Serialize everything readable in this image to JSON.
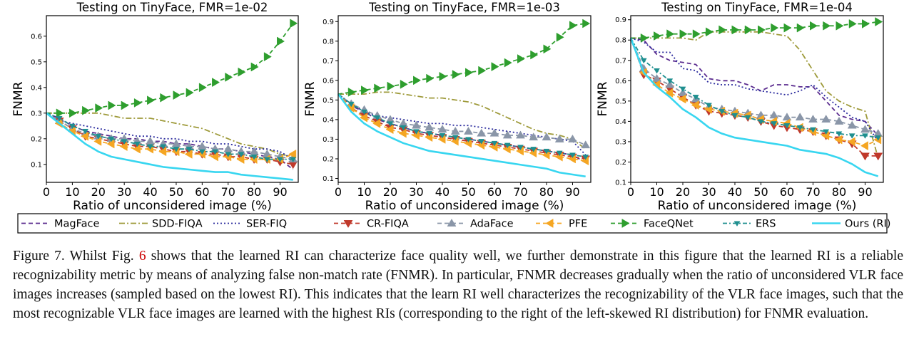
{
  "x_ticks": [
    "0",
    "10",
    "20",
    "30",
    "40",
    "50",
    "60",
    "70",
    "80",
    "90"
  ],
  "legend": [
    {
      "name": "MagFace",
      "color": "#5b2c8f",
      "dash": "6,4",
      "marker": "none"
    },
    {
      "name": "SDD-FIQA",
      "color": "#9e9a3a",
      "dash": "8,3,2,3",
      "marker": "none"
    },
    {
      "name": "SER-FIQ",
      "color": "#2c2c9e",
      "dash": "2,3",
      "marker": "none"
    },
    {
      "name": "CR-FIQA",
      "color": "#c0392b",
      "dash": "6,4",
      "marker": "tri-down"
    },
    {
      "name": "AdaFace",
      "color": "#8a96a8",
      "dash": "6,4",
      "marker": "tri-up"
    },
    {
      "name": "PFE",
      "color": "#f5a623",
      "dash": "6,4",
      "marker": "tri-left"
    },
    {
      "name": "FaceQNet",
      "color": "#2e9e2e",
      "dash": "6,4",
      "marker": "tri-right"
    },
    {
      "name": "ERS",
      "color": "#1f8f8f",
      "dash": "6,3,2,3",
      "marker": "tri-down-small"
    },
    {
      "name": "Ours (RI)",
      "color": "#38d6f0",
      "dash": "",
      "marker": "none"
    }
  ],
  "chart_data": [
    {
      "type": "line",
      "title": "Testing on TinyFace, FMR=1e-02",
      "xlabel": "Ratio of unconsidered image (%)",
      "ylabel": "FNMR",
      "xlim": [
        0,
        97
      ],
      "ylim": [
        0.03,
        0.68
      ],
      "yticks": [
        "0.1",
        "0.2",
        "0.3",
        "0.4",
        "0.5",
        "0.6"
      ],
      "x": [
        0,
        5,
        10,
        15,
        20,
        25,
        30,
        35,
        40,
        45,
        50,
        55,
        60,
        65,
        70,
        75,
        80,
        85,
        90,
        95
      ],
      "series": [
        {
          "name": "MagFace",
          "values": [
            0.3,
            0.28,
            0.25,
            0.23,
            0.22,
            0.21,
            0.2,
            0.2,
            0.19,
            0.19,
            0.18,
            0.18,
            0.17,
            0.16,
            0.16,
            0.15,
            0.14,
            0.13,
            0.12,
            0.08
          ]
        },
        {
          "name": "SDD-FIQA",
          "values": [
            0.3,
            0.3,
            0.3,
            0.3,
            0.3,
            0.29,
            0.28,
            0.28,
            0.28,
            0.27,
            0.26,
            0.25,
            0.24,
            0.22,
            0.2,
            0.18,
            0.17,
            0.16,
            0.14,
            0.13
          ]
        },
        {
          "name": "SER-FIQ",
          "values": [
            0.3,
            0.27,
            0.26,
            0.25,
            0.24,
            0.23,
            0.22,
            0.21,
            0.21,
            0.2,
            0.2,
            0.19,
            0.19,
            0.18,
            0.18,
            0.17,
            0.16,
            0.16,
            0.15,
            0.12
          ]
        },
        {
          "name": "CR-FIQA",
          "values": [
            0.3,
            0.27,
            0.24,
            0.21,
            0.2,
            0.19,
            0.18,
            0.17,
            0.17,
            0.16,
            0.15,
            0.15,
            0.14,
            0.14,
            0.13,
            0.13,
            0.12,
            0.12,
            0.11,
            0.1
          ]
        },
        {
          "name": "AdaFace",
          "values": [
            0.3,
            0.27,
            0.24,
            0.22,
            0.21,
            0.2,
            0.2,
            0.19,
            0.19,
            0.18,
            0.18,
            0.17,
            0.17,
            0.16,
            0.16,
            0.15,
            0.15,
            0.14,
            0.13,
            0.12
          ]
        },
        {
          "name": "PFE",
          "values": [
            0.3,
            0.26,
            0.23,
            0.21,
            0.19,
            0.18,
            0.17,
            0.16,
            0.16,
            0.15,
            0.15,
            0.14,
            0.14,
            0.13,
            0.13,
            0.12,
            0.12,
            0.12,
            0.12,
            0.14
          ]
        },
        {
          "name": "FaceQNet",
          "values": [
            0.3,
            0.3,
            0.3,
            0.31,
            0.32,
            0.33,
            0.33,
            0.34,
            0.35,
            0.36,
            0.37,
            0.38,
            0.4,
            0.42,
            0.44,
            0.46,
            0.48,
            0.52,
            0.58,
            0.65
          ]
        },
        {
          "name": "ERS",
          "values": [
            0.3,
            0.28,
            0.25,
            0.23,
            0.21,
            0.2,
            0.19,
            0.18,
            0.17,
            0.17,
            0.16,
            0.16,
            0.15,
            0.15,
            0.14,
            0.14,
            0.13,
            0.12,
            0.12,
            0.12
          ]
        },
        {
          "name": "Ours (RI)",
          "values": [
            0.3,
            0.26,
            0.22,
            0.18,
            0.15,
            0.13,
            0.12,
            0.11,
            0.1,
            0.09,
            0.085,
            0.08,
            0.075,
            0.07,
            0.07,
            0.06,
            0.055,
            0.05,
            0.045,
            0.04
          ]
        }
      ]
    },
    {
      "type": "line",
      "title": "Testing on TinyFace, FMR=1e-03",
      "xlabel": "Ratio of unconsidered image (%)",
      "ylabel": "FNMR",
      "xlim": [
        0,
        97
      ],
      "ylim": [
        0.08,
        0.93
      ],
      "yticks": [
        "0.1",
        "0.2",
        "0.3",
        "0.4",
        "0.5",
        "0.6",
        "0.7",
        "0.8",
        "0.9"
      ],
      "x": [
        0,
        5,
        10,
        15,
        20,
        25,
        30,
        35,
        40,
        45,
        50,
        55,
        60,
        65,
        70,
        75,
        80,
        85,
        90,
        95
      ],
      "series": [
        {
          "name": "MagFace",
          "values": [
            0.53,
            0.47,
            0.44,
            0.4,
            0.38,
            0.36,
            0.34,
            0.33,
            0.32,
            0.31,
            0.3,
            0.29,
            0.28,
            0.27,
            0.26,
            0.25,
            0.24,
            0.23,
            0.22,
            0.18
          ]
        },
        {
          "name": "SDD-FIQA",
          "values": [
            0.53,
            0.53,
            0.53,
            0.54,
            0.54,
            0.53,
            0.52,
            0.51,
            0.51,
            0.5,
            0.49,
            0.47,
            0.44,
            0.41,
            0.38,
            0.35,
            0.33,
            0.32,
            0.3,
            0.25
          ]
        },
        {
          "name": "SER-FIQ",
          "values": [
            0.53,
            0.48,
            0.44,
            0.42,
            0.41,
            0.4,
            0.39,
            0.38,
            0.38,
            0.37,
            0.37,
            0.36,
            0.35,
            0.34,
            0.33,
            0.32,
            0.31,
            0.3,
            0.29,
            0.22
          ]
        },
        {
          "name": "CR-FIQA",
          "values": [
            0.53,
            0.46,
            0.42,
            0.39,
            0.36,
            0.35,
            0.33,
            0.32,
            0.31,
            0.3,
            0.29,
            0.28,
            0.27,
            0.26,
            0.25,
            0.24,
            0.23,
            0.22,
            0.21,
            0.2
          ]
        },
        {
          "name": "AdaFace",
          "values": [
            0.53,
            0.48,
            0.45,
            0.42,
            0.4,
            0.38,
            0.37,
            0.36,
            0.35,
            0.34,
            0.34,
            0.33,
            0.33,
            0.32,
            0.32,
            0.31,
            0.31,
            0.3,
            0.3,
            0.27
          ]
        },
        {
          "name": "PFE",
          "values": [
            0.53,
            0.46,
            0.41,
            0.38,
            0.35,
            0.33,
            0.32,
            0.31,
            0.3,
            0.29,
            0.28,
            0.27,
            0.26,
            0.25,
            0.24,
            0.23,
            0.22,
            0.21,
            0.2,
            0.19
          ]
        },
        {
          "name": "FaceQNet",
          "values": [
            0.53,
            0.54,
            0.55,
            0.56,
            0.57,
            0.58,
            0.6,
            0.61,
            0.62,
            0.63,
            0.64,
            0.65,
            0.67,
            0.69,
            0.71,
            0.73,
            0.76,
            0.82,
            0.88,
            0.89
          ]
        },
        {
          "name": "ERS",
          "values": [
            0.53,
            0.48,
            0.44,
            0.41,
            0.38,
            0.36,
            0.34,
            0.33,
            0.32,
            0.31,
            0.3,
            0.29,
            0.28,
            0.27,
            0.26,
            0.25,
            0.24,
            0.23,
            0.22,
            0.21
          ]
        },
        {
          "name": "Ours (RI)",
          "values": [
            0.53,
            0.44,
            0.38,
            0.34,
            0.31,
            0.28,
            0.26,
            0.24,
            0.23,
            0.22,
            0.21,
            0.2,
            0.19,
            0.18,
            0.17,
            0.16,
            0.15,
            0.13,
            0.12,
            0.11
          ]
        }
      ]
    },
    {
      "type": "line",
      "title": "Testing on TinyFace, FMR=1e-04",
      "xlabel": "Ratio of unconsidered image (%)",
      "ylabel": "FNMR",
      "xlim": [
        0,
        97
      ],
      "ylim": [
        0.1,
        0.92
      ],
      "yticks": [
        "0.1",
        "0.2",
        "0.3",
        "0.4",
        "0.5",
        "0.6",
        "0.7",
        "0.8",
        "0.9"
      ],
      "x": [
        0,
        5,
        10,
        15,
        20,
        25,
        30,
        35,
        40,
        45,
        50,
        55,
        60,
        65,
        70,
        75,
        80,
        85,
        90,
        95
      ],
      "series": [
        {
          "name": "MagFace",
          "values": [
            0.81,
            0.8,
            0.73,
            0.7,
            0.69,
            0.68,
            0.61,
            0.6,
            0.6,
            0.58,
            0.55,
            0.58,
            0.58,
            0.57,
            0.57,
            0.5,
            0.43,
            0.41,
            0.4,
            0.33
          ]
        },
        {
          "name": "SDD-FIQA",
          "values": [
            0.81,
            0.81,
            0.81,
            0.81,
            0.81,
            0.8,
            0.84,
            0.84,
            0.84,
            0.84,
            0.84,
            0.83,
            0.82,
            0.75,
            0.65,
            0.55,
            0.5,
            0.47,
            0.45,
            0.22
          ]
        },
        {
          "name": "SER-FIQ",
          "values": [
            0.81,
            0.79,
            0.74,
            0.74,
            0.66,
            0.65,
            0.59,
            0.58,
            0.58,
            0.56,
            0.55,
            0.54,
            0.53,
            0.55,
            0.58,
            0.52,
            0.47,
            0.42,
            0.4,
            0.3
          ]
        },
        {
          "name": "CR-FIQA",
          "values": [
            0.81,
            0.63,
            0.6,
            0.56,
            0.52,
            0.48,
            0.45,
            0.44,
            0.43,
            0.42,
            0.4,
            0.38,
            0.37,
            0.36,
            0.35,
            0.33,
            0.31,
            0.29,
            0.23,
            0.23
          ]
        },
        {
          "name": "AdaFace",
          "values": [
            0.81,
            0.66,
            0.61,
            0.58,
            0.54,
            0.51,
            0.47,
            0.46,
            0.45,
            0.44,
            0.43,
            0.43,
            0.42,
            0.42,
            0.41,
            0.41,
            0.4,
            0.38,
            0.36,
            0.34
          ]
        },
        {
          "name": "PFE",
          "values": [
            0.81,
            0.64,
            0.58,
            0.54,
            0.51,
            0.48,
            0.46,
            0.45,
            0.44,
            0.43,
            0.41,
            0.4,
            0.39,
            0.37,
            0.35,
            0.33,
            0.31,
            0.3,
            0.28,
            0.31
          ]
        },
        {
          "name": "FaceQNet",
          "values": [
            0.81,
            0.81,
            0.82,
            0.83,
            0.83,
            0.83,
            0.84,
            0.85,
            0.85,
            0.85,
            0.85,
            0.86,
            0.86,
            0.86,
            0.87,
            0.87,
            0.87,
            0.88,
            0.88,
            0.89
          ]
        },
        {
          "name": "ERS",
          "values": [
            0.81,
            0.7,
            0.65,
            0.6,
            0.56,
            0.52,
            0.48,
            0.45,
            0.43,
            0.42,
            0.4,
            0.39,
            0.38,
            0.37,
            0.36,
            0.35,
            0.34,
            0.33,
            0.33,
            0.32
          ]
        },
        {
          "name": "Ours (RI)",
          "values": [
            0.81,
            0.64,
            0.57,
            0.52,
            0.46,
            0.42,
            0.37,
            0.34,
            0.32,
            0.31,
            0.3,
            0.29,
            0.28,
            0.26,
            0.25,
            0.24,
            0.22,
            0.19,
            0.15,
            0.13
          ]
        }
      ]
    }
  ],
  "caption": {
    "prefix": "Figure 7. Whilst Fig. ",
    "ref": "6",
    "text": " shows that the learned RI can characterize face quality well, we further demonstrate in this figure that the learned RI is a reliable recognizability metric by means of analyzing false non-match rate (FNMR). In particular, FNMR decreases gradually when the ratio of unconsidered VLR face images increases (sampled based on the lowest RI). This indicates that the learn RI well characterizes the recognizability of the VLR face images, such that the most recognizable VLR face images are learned with the highest RIs (corresponding to the right of the left-skewed RI distribution) for FNMR evaluation."
  }
}
